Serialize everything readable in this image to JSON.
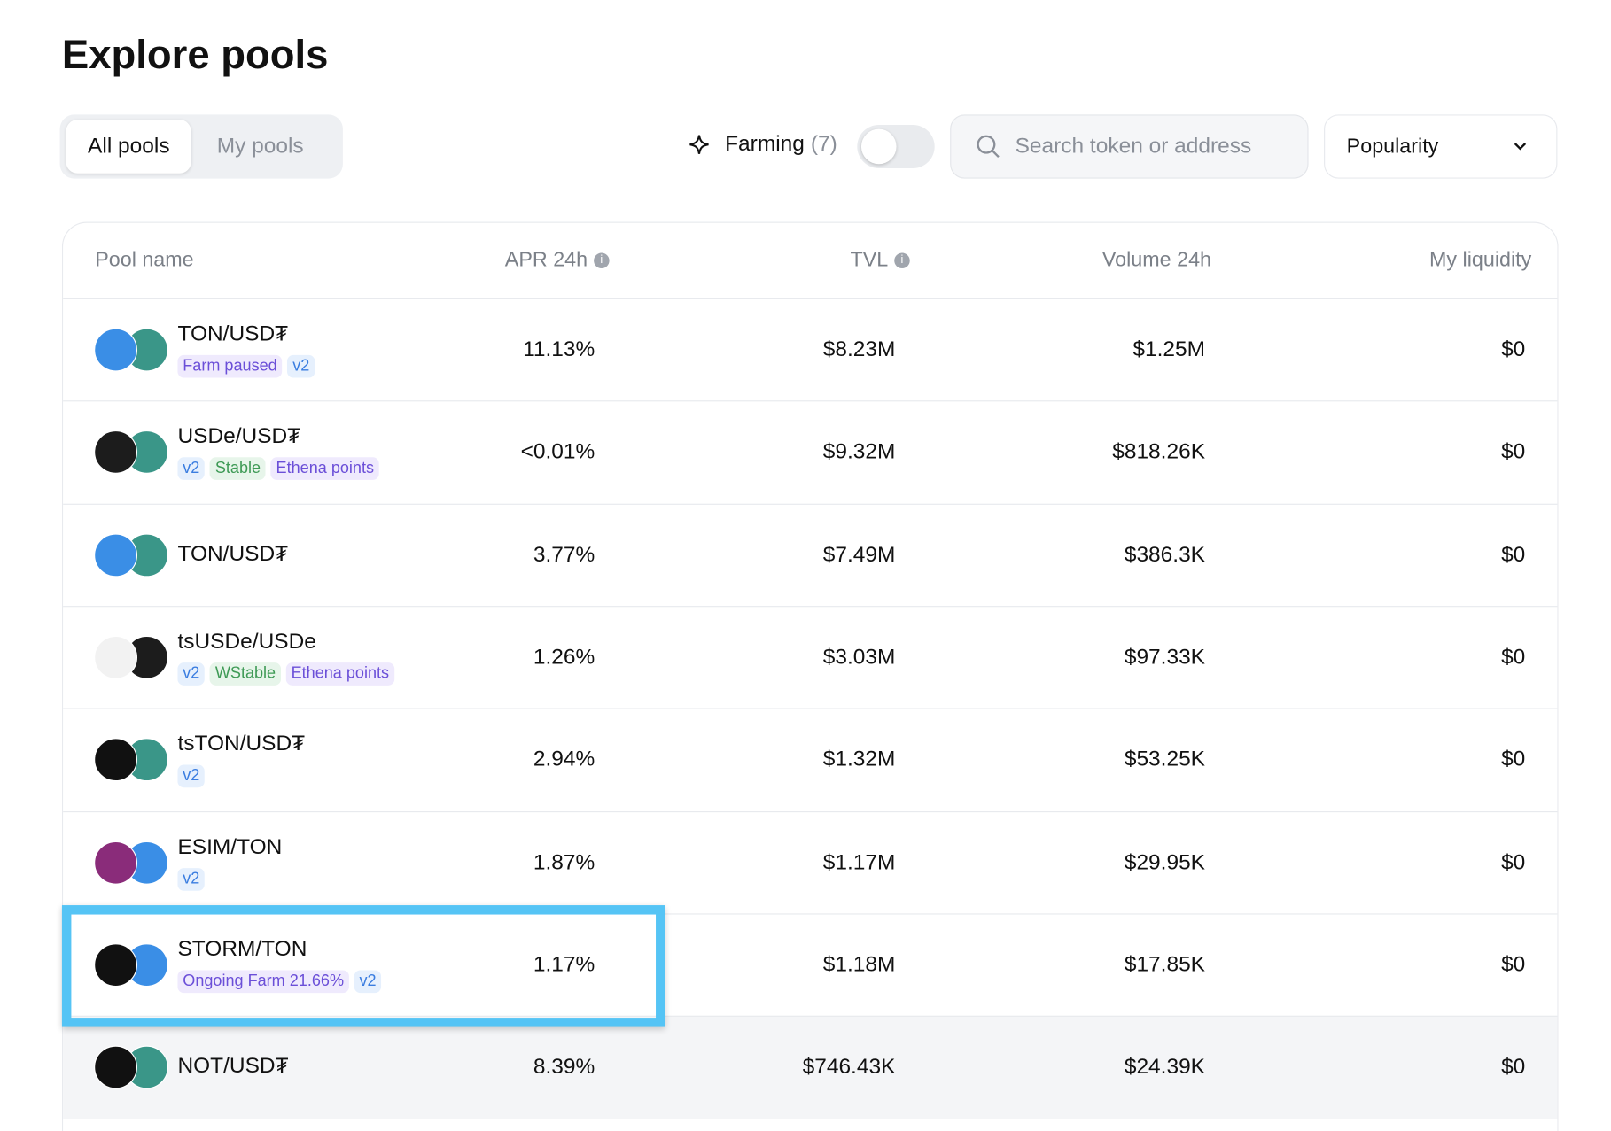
{
  "header": {
    "title": "Explore pools"
  },
  "tabs": {
    "items": [
      "All pools",
      "My pools"
    ],
    "active": 0
  },
  "filters": {
    "farming_label": "Farming",
    "farming_count": "(7)",
    "search_placeholder": "Search token or address",
    "sort": "Popularity"
  },
  "table": {
    "columns": [
      "Pool name",
      "APR 24h",
      "TVL",
      "Volume 24h",
      "My liquidity"
    ],
    "highlighted_row": 6,
    "hovered_row": 7,
    "rows": [
      {
        "name": "TON/USD₮",
        "icons": [
          "#3a8ee6",
          "#3a9688"
        ],
        "tags": [
          {
            "label": "Farm paused",
            "style": "purple"
          },
          {
            "label": "v2",
            "style": "blue"
          }
        ],
        "apr": "11.13%",
        "tvl": "$8.23M",
        "volume": "$1.25M",
        "liquidity": "$0"
      },
      {
        "name": "USDe/USD₮",
        "icons": [
          "#1c1c1c",
          "#3a9688"
        ],
        "tags": [
          {
            "label": "v2",
            "style": "blue"
          },
          {
            "label": "Stable",
            "style": "green"
          },
          {
            "label": "Ethena points",
            "style": "purple"
          }
        ],
        "apr": "<0.01%",
        "tvl": "$9.32M",
        "volume": "$818.26K",
        "liquidity": "$0"
      },
      {
        "name": "TON/USD₮",
        "icons": [
          "#3a8ee6",
          "#3a9688"
        ],
        "tags": [],
        "apr": "3.77%",
        "tvl": "$7.49M",
        "volume": "$386.3K",
        "liquidity": "$0"
      },
      {
        "name": "tsUSDe/USDe",
        "icons": [
          "#f2f2f2",
          "#1c1c1c"
        ],
        "tags": [
          {
            "label": "v2",
            "style": "blue"
          },
          {
            "label": "WStable",
            "style": "green"
          },
          {
            "label": "Ethena points",
            "style": "purple"
          }
        ],
        "apr": "1.26%",
        "tvl": "$3.03M",
        "volume": "$97.33K",
        "liquidity": "$0"
      },
      {
        "name": "tsTON/USD₮",
        "icons": [
          "#111111",
          "#3a9688"
        ],
        "tags": [
          {
            "label": "v2",
            "style": "blue"
          }
        ],
        "apr": "2.94%",
        "tvl": "$1.32M",
        "volume": "$53.25K",
        "liquidity": "$0"
      },
      {
        "name": "ESIM/TON",
        "icons": [
          "#8a2c7a",
          "#3a8ee6"
        ],
        "tags": [
          {
            "label": "v2",
            "style": "blue"
          }
        ],
        "apr": "1.87%",
        "tvl": "$1.17M",
        "volume": "$29.95K",
        "liquidity": "$0"
      },
      {
        "name": "STORM/TON",
        "icons": [
          "#111111",
          "#3a8ee6"
        ],
        "tags": [
          {
            "label": "Ongoing Farm 21.66%",
            "style": "purple"
          },
          {
            "label": "v2",
            "style": "blue"
          }
        ],
        "apr": "1.17%",
        "tvl": "$1.18M",
        "volume": "$17.85K",
        "liquidity": "$0"
      },
      {
        "name": "NOT/USD₮",
        "icons": [
          "#111111",
          "#3a9688"
        ],
        "tags": [],
        "apr": "8.39%",
        "tvl": "$746.43K",
        "volume": "$24.39K",
        "liquidity": "$0"
      }
    ]
  }
}
